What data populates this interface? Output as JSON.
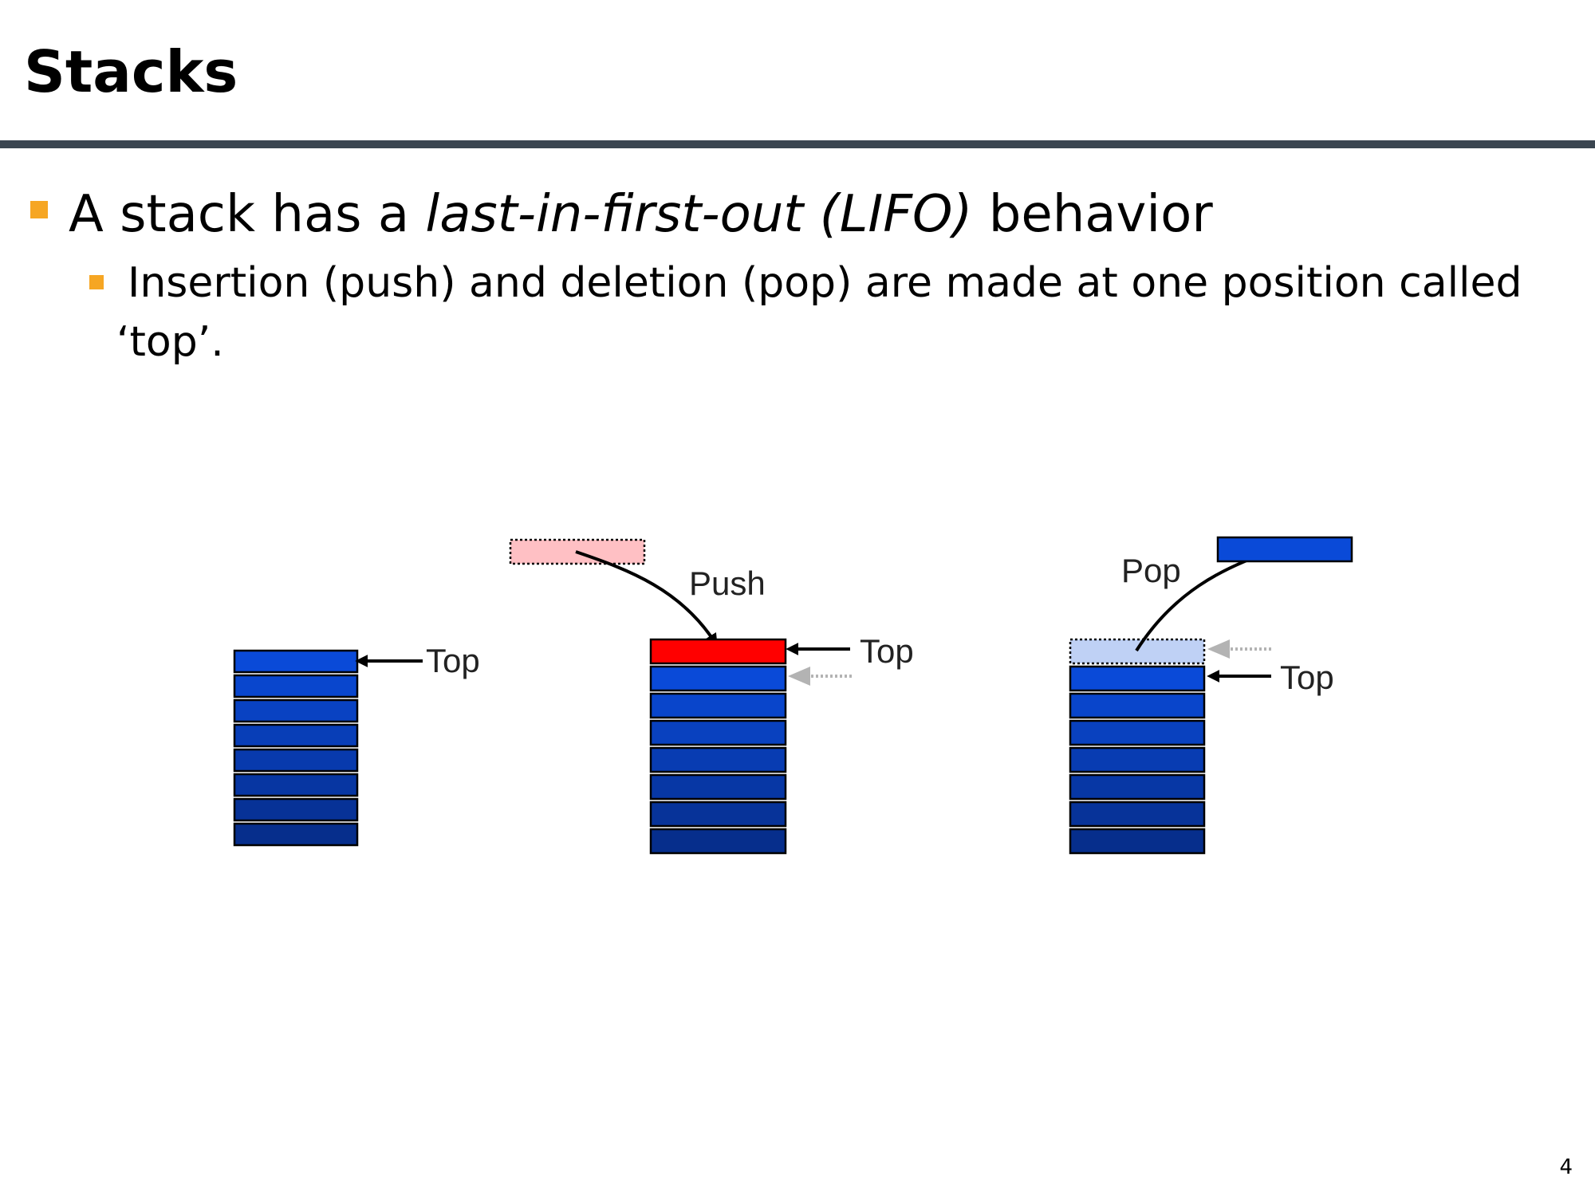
{
  "slide": {
    "title": "Stacks",
    "page_number": "4"
  },
  "bullets": {
    "level1": {
      "text_before": "A stack has a ",
      "text_italic": "last-in-first-out (LIFO)",
      "text_after": " behavior"
    },
    "level2": {
      "line1": " Insertion (push) and deletion (pop) are made at one position called",
      "line2": "‘top’."
    }
  },
  "diagram": {
    "stack1": {
      "label": "Top",
      "block_count": 8
    },
    "stack2": {
      "op_label": "Push",
      "label": "Top",
      "block_count": 7,
      "pushed_color": "#ff0000",
      "ghost_color": "#ffc0c4"
    },
    "stack3": {
      "op_label": "Pop",
      "label": "Top",
      "block_count": 7,
      "popped_color": "#0a4ad8",
      "ghost_color": "#bfd1f5"
    },
    "colors": {
      "block_top": "#0a4ad8",
      "block_bottom": "#062e8c",
      "pointer": "#000000",
      "old_pointer": "#b3b3b3"
    }
  }
}
